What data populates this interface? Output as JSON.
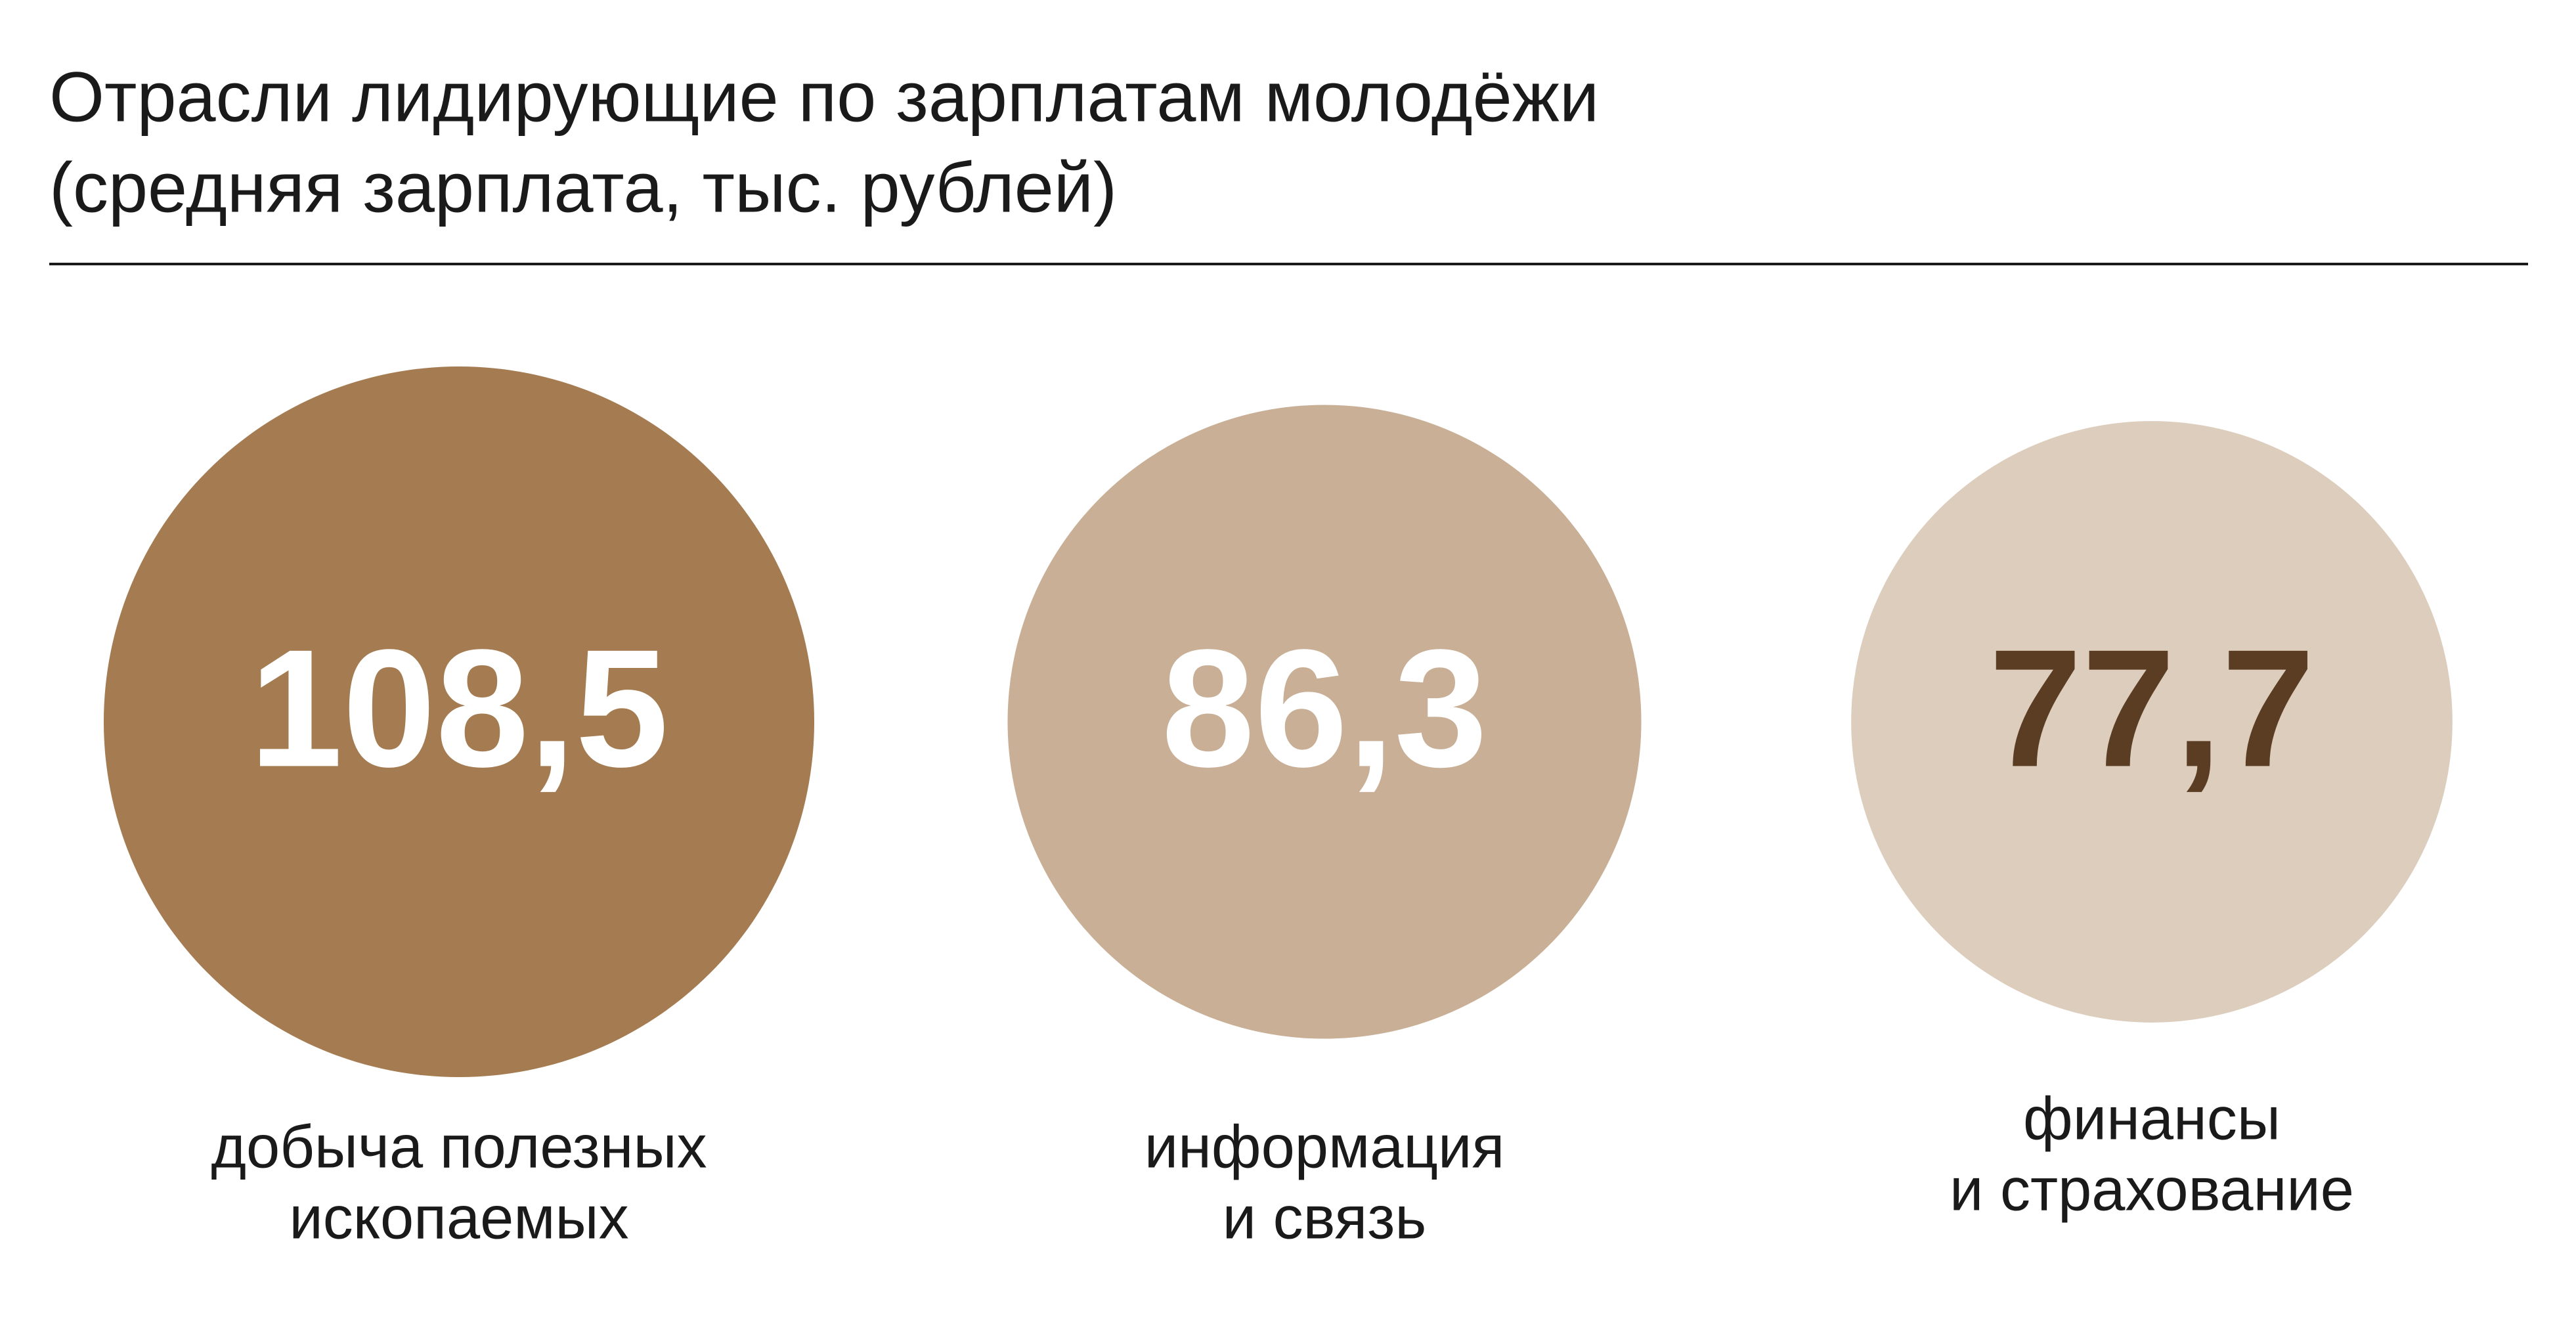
{
  "chart_data": {
    "type": "bubble",
    "title": [
      "Отрасли лидирующие по зарплатам молодёжи",
      "(средняя зарплата, тыс. рублей)"
    ],
    "categories": [
      [
        "добыча полезных",
        "ископаемых"
      ],
      [
        "информация",
        "и связь"
      ],
      [
        "финансы",
        "и страхование"
      ]
    ],
    "values": [
      108.5,
      86.3,
      77.7
    ],
    "value_labels": [
      "108,5",
      "86,3",
      "77,7"
    ],
    "colors": [
      "#a57c52",
      "#c8af96",
      "#dccdbd"
    ],
    "label_colors": [
      "#ffffff",
      "#ffffff",
      "#5a3d22"
    ]
  }
}
